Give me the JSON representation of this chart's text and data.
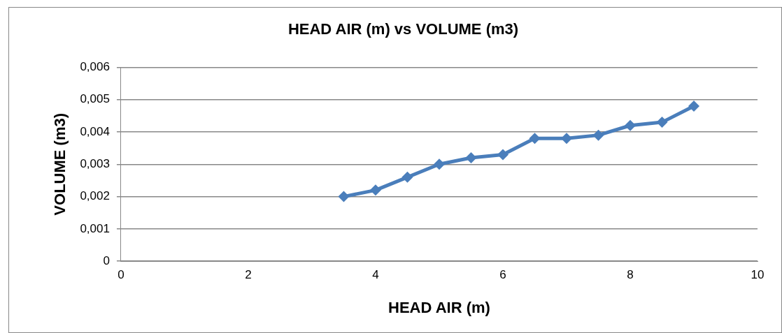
{
  "chart_data": {
    "type": "line",
    "title": "HEAD AIR (m) vs VOLUME (m3)",
    "xlabel": "HEAD AIR (m)",
    "ylabel": "VOLUME (m3)",
    "x": [
      3.5,
      4,
      4.5,
      5,
      5.5,
      6,
      6.5,
      7,
      7.5,
      8,
      8.5,
      9
    ],
    "series": [
      {
        "color": "#4a7ebb",
        "values": [
          0.002,
          0.0022,
          0.0026,
          0.003,
          0.0032,
          0.0033,
          0.0038,
          0.0038,
          0.0039,
          0.0042,
          0.0043,
          0.0048
        ]
      }
    ],
    "xlim": [
      0,
      10
    ],
    "xticks": [
      0,
      2,
      4,
      6,
      8,
      10
    ],
    "ylim": [
      0,
      0.006
    ],
    "yticks": [
      0,
      {
        "value": 0.001,
        "label": "0,001"
      },
      {
        "value": 0.002,
        "label": "0,002"
      },
      {
        "value": 0.003,
        "label": "0,003"
      },
      {
        "value": 0.004,
        "label": "0,004"
      },
      {
        "value": 0.005,
        "label": "0,005"
      },
      {
        "value": 0.006,
        "label": "0,006"
      }
    ],
    "grid": "y",
    "legend": false,
    "marker": "diamond",
    "line_style": "solid"
  }
}
